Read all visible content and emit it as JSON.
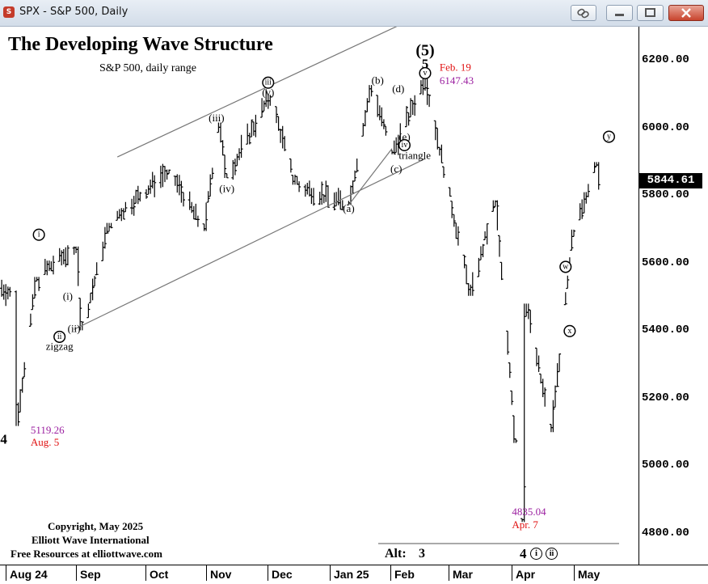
{
  "window": {
    "title": "SPX - S&P 500, Daily",
    "controls": [
      "link-icon",
      "minimize-icon",
      "maximize-icon",
      "close-icon"
    ]
  },
  "chart_data": {
    "type": "ohlc",
    "title": "The Developing Wave Structure",
    "subtitle": "S&P 500, daily range",
    "ylim": [
      4700,
      6320
    ],
    "y_ticks": [
      "6200.00",
      "6000.00",
      "5800.00",
      "5600.00",
      "5400.00",
      "5200.00",
      "5000.00",
      "4800.00"
    ],
    "x_ticks": [
      "Aug 24",
      "Sep",
      "Oct",
      "Nov",
      "Dec",
      "Jan 25",
      "Feb",
      "Mar",
      "Apr",
      "May"
    ],
    "last_price": "5844.61",
    "series": [
      {
        "date": "2024-08-05",
        "low": 5119.26
      },
      {
        "date": "2024-08-15",
        "high": 5560
      },
      {
        "date": "2024-09-03",
        "high": 5650
      },
      {
        "date": "2024-09-06",
        "low": 5402
      },
      {
        "date": "2024-09-19",
        "high": 5720
      },
      {
        "date": "2024-10-18",
        "high": 5878
      },
      {
        "date": "2024-11-04",
        "low": 5696
      },
      {
        "date": "2024-11-11",
        "high": 6017
      },
      {
        "date": "2024-11-15",
        "low": 5853
      },
      {
        "date": "2024-12-06",
        "high": 6099
      },
      {
        "date": "2024-12-18",
        "low": 5833
      },
      {
        "date": "2025-01-13",
        "low": 5773
      },
      {
        "date": "2025-01-24",
        "high": 6128
      },
      {
        "date": "2025-02-03",
        "low": 5923
      },
      {
        "date": "2025-02-19",
        "high": 6147.43
      },
      {
        "date": "2025-03-13",
        "low": 5504
      },
      {
        "date": "2025-03-25",
        "high": 5787
      },
      {
        "date": "2025-04-04",
        "low": 5069
      },
      {
        "date": "2025-04-07",
        "low": 4835.04
      },
      {
        "date": "2025-04-09",
        "high": 5481
      },
      {
        "date": "2025-04-21",
        "low": 5101
      },
      {
        "date": "2025-05-02",
        "high": 5700
      },
      {
        "date": "2025-05-13",
        "high": 5900
      },
      {
        "date": "2025-05-14",
        "close": 5844.61
      }
    ],
    "annotations": [
      {
        "text": "(5)",
        "date": "2025-02-19",
        "y": 6230
      },
      {
        "text": "5",
        "date": "2025-02-19",
        "y": 6190
      },
      {
        "text": "v",
        "style": "circled",
        "date": "2025-02-19",
        "y": 6163
      },
      {
        "text": "Feb. 19",
        "color": "red",
        "date": "2025-02-26",
        "y": 6181
      },
      {
        "text": "6147.43",
        "color": "purple",
        "date": "2025-02-26",
        "y": 6141
      },
      {
        "text": "iii",
        "style": "circled",
        "date": "2024-12-05",
        "y": 6135
      },
      {
        "text": "(v)",
        "date": "2024-12-05",
        "y": 6107
      },
      {
        "text": "(iii)",
        "date": "2024-11-10",
        "y": 6031
      },
      {
        "text": "(iv)",
        "date": "2024-11-15",
        "y": 5822
      },
      {
        "text": "(b)",
        "date": "2025-01-27",
        "y": 6143
      },
      {
        "text": "(d)",
        "date": "2025-02-06",
        "y": 6118
      },
      {
        "text": "(e)",
        "date": "2025-02-09",
        "y": 5975
      },
      {
        "text": "(c)",
        "date": "2025-02-05",
        "y": 5880
      },
      {
        "text": "iv",
        "style": "circled",
        "date": "2025-02-09",
        "y": 5950
      },
      {
        "text": "triangle",
        "date": "2025-02-14",
        "y": 5920
      },
      {
        "text": "(a)",
        "date": "2025-01-13",
        "y": 5763
      },
      {
        "text": "i",
        "style": "circled",
        "date": "2024-08-16",
        "y": 5685
      },
      {
        "text": "(i)",
        "date": "2024-08-30",
        "y": 5503
      },
      {
        "text": "ii",
        "style": "circled",
        "date": "2024-08-26",
        "y": 5383
      },
      {
        "text": "(ii)",
        "date": "2024-09-02",
        "y": 5408
      },
      {
        "text": "zigzag",
        "date": "2024-08-26",
        "y": 5355
      },
      {
        "text": "5119.26",
        "color": "purple",
        "date": "2024-08-12",
        "y": 5107
      },
      {
        "text": "Aug. 5",
        "color": "red",
        "date": "2024-08-12",
        "y": 5072
      },
      {
        "text": "4",
        "date": "2024-07-30",
        "y": 5080
      },
      {
        "text": "4835.04",
        "color": "purple",
        "date": "2025-04-02",
        "y": 4866
      },
      {
        "text": "Apr. 7",
        "color": "red",
        "date": "2025-04-02",
        "y": 4827
      },
      {
        "text": "w",
        "style": "circled",
        "date": "2025-04-28",
        "y": 5590
      },
      {
        "text": "x",
        "style": "circled",
        "date": "2025-04-30",
        "y": 5400
      },
      {
        "text": "y",
        "style": "circled",
        "date": "2025-05-19",
        "y": 5975
      }
    ],
    "channel_lines": [
      {
        "from": [
          "2024-09-23",
          5915
        ],
        "to": [
          "2025-02-10",
          6315
        ]
      },
      {
        "from": [
          "2024-09-02",
          5405
        ],
        "to": [
          "2025-02-19",
          5910
        ]
      },
      {
        "from": [
          "2025-01-13",
          5773
        ],
        "to": [
          "2025-02-03",
          5940
        ]
      }
    ],
    "footer_labels": {
      "copyright": "Copyright, May 2025",
      "company": "Elliott Wave International",
      "resources": "Free Resources at elliottwave.com",
      "alt_label": "Alt:",
      "alt_value": "3",
      "alt_wave4": "4",
      "alt_wave_i": "i",
      "alt_wave_ii": "ii"
    }
  }
}
